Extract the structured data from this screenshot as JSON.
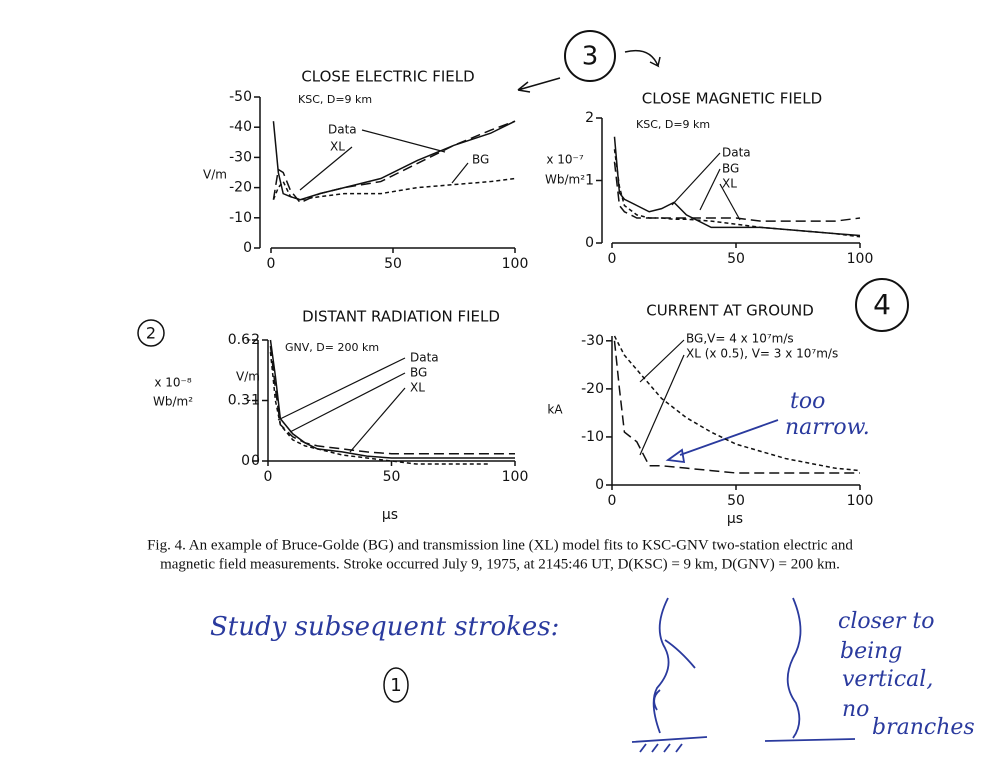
{
  "chart_data": [
    {
      "type": "line",
      "title": "CLOSE ELECTRIC FIELD",
      "subtitle": "KSC, D=9 km",
      "ylabel": [
        "V/m"
      ],
      "x": [
        1,
        3,
        5,
        8,
        12,
        20,
        30,
        45,
        60,
        75,
        90,
        100
      ],
      "xlim": [
        0,
        100
      ],
      "xticks": [
        0,
        50,
        100
      ],
      "ylim": [
        0,
        -50
      ],
      "yticks": [
        0,
        -10,
        -20,
        -30,
        -40,
        -50
      ],
      "series": [
        {
          "name": "Data",
          "color": "#111111",
          "dash": "solid",
          "values": [
            -42,
            -25,
            -18,
            -17,
            -16,
            -18,
            -20,
            -23,
            -29,
            -34,
            -38,
            -42
          ]
        },
        {
          "name": "XL",
          "color": "#111111",
          "dash": "long",
          "values": [
            -16,
            -26,
            -25,
            -19,
            -15,
            -18,
            -20,
            -22,
            -28,
            -34,
            -39,
            -42
          ]
        },
        {
          "name": "BG",
          "color": "#111111",
          "dash": "short",
          "values": [
            -16,
            -20,
            -22,
            -17,
            -16,
            -17,
            -18,
            -18,
            -20,
            -21,
            -22,
            -23
          ]
        }
      ]
    },
    {
      "type": "line",
      "title": "CLOSE MAGNETIC FIELD",
      "subtitle": "KSC, D=9 km",
      "ylabel": [
        "x 10⁻⁷",
        "Wb/m²"
      ],
      "x": [
        1,
        3,
        5,
        10,
        15,
        20,
        25,
        30,
        40,
        50,
        60,
        75,
        90,
        100
      ],
      "xlim": [
        0,
        100
      ],
      "xticks": [
        0,
        50,
        100
      ],
      "ylim": [
        0,
        2
      ],
      "yticks": [
        0,
        1,
        2
      ],
      "series": [
        {
          "name": "Data",
          "color": "#111111",
          "dash": "solid",
          "values": [
            1.7,
            0.8,
            0.7,
            0.6,
            0.5,
            0.55,
            0.65,
            0.45,
            0.25,
            0.25,
            0.25,
            0.2,
            0.15,
            0.12
          ]
        },
        {
          "name": "BG",
          "color": "#111111",
          "dash": "short",
          "values": [
            1.5,
            0.9,
            0.6,
            0.45,
            0.4,
            0.4,
            0.38,
            0.38,
            0.35,
            0.3,
            0.25,
            0.2,
            0.15,
            0.1
          ]
        },
        {
          "name": "XL",
          "color": "#111111",
          "dash": "long",
          "values": [
            1.3,
            0.6,
            0.5,
            0.4,
            0.4,
            0.4,
            0.4,
            0.4,
            0.4,
            0.4,
            0.35,
            0.35,
            0.35,
            0.4
          ]
        }
      ]
    },
    {
      "type": "line",
      "title": "DISTANT RADIATION FIELD",
      "subtitle": "GNV, D= 200 km",
      "ylabel": [
        "x 10⁻⁸",
        "Wb/m²"
      ],
      "y2label": [
        "V/m"
      ],
      "xlabel": "µs",
      "x": [
        1,
        3,
        5,
        10,
        15,
        20,
        30,
        40,
        50,
        60,
        70,
        80,
        90,
        100
      ],
      "xlim": [
        0,
        100
      ],
      "xticks": [
        0,
        50,
        100
      ],
      "ylim": [
        0,
        0.6
      ],
      "yticks": [
        0,
        0.3,
        0.6
      ],
      "y2lim": [
        0,
        -2
      ],
      "y2ticks": [
        0,
        -1,
        -2
      ],
      "series": [
        {
          "name": "Data",
          "color": "#111111",
          "dash": "solid",
          "axis": "y2",
          "values": [
            -2,
            -1.4,
            -0.7,
            -0.45,
            -0.3,
            -0.2,
            -0.15,
            -0.08,
            -0.05,
            -0.05,
            -0.05,
            -0.05,
            -0.05,
            -0.05
          ]
        },
        {
          "name": "BG",
          "color": "#111111",
          "dash": "short",
          "axis": "y2",
          "values": [
            -1.8,
            -1.0,
            -0.6,
            -0.35,
            -0.25,
            -0.2,
            -0.1,
            -0.05,
            0,
            0.05,
            0.05,
            0.05,
            0.05,
            null
          ]
        },
        {
          "name": "XL",
          "color": "#111111",
          "dash": "long",
          "axis": "y2",
          "values": [
            -1.9,
            -1.2,
            -0.6,
            -0.4,
            -0.3,
            -0.25,
            -0.2,
            -0.15,
            -0.12,
            -0.12,
            -0.12,
            -0.12,
            -0.12,
            -0.12
          ]
        }
      ]
    },
    {
      "type": "line",
      "title": "CURRENT AT GROUND",
      "ylabel": [
        "kA"
      ],
      "xlabel": "µs",
      "x": [
        1,
        3,
        5,
        10,
        15,
        20,
        30,
        40,
        50,
        60,
        70,
        80,
        90,
        100
      ],
      "xlim": [
        0,
        100
      ],
      "xticks": [
        0,
        50,
        100
      ],
      "ylim": [
        0,
        -31
      ],
      "yticks": [
        0,
        -10,
        -20,
        -30
      ],
      "series": [
        {
          "name": "BG,V= 4 x 10⁷m/s",
          "color": "#111111",
          "dash": "short",
          "values": [
            -31,
            -29,
            -27,
            -24,
            -21,
            -18,
            -14,
            -11,
            -8.5,
            -7,
            -5.5,
            -4.5,
            -3.5,
            -3
          ]
        },
        {
          "name": "XL (x 0.5), V= 3 x 10⁷m/s",
          "color": "#111111",
          "dash": "long",
          "values": [
            -30,
            -20,
            -11,
            -9,
            -4,
            -4,
            -3.5,
            -3,
            -2.5,
            -2.5,
            -2.5,
            -2.5,
            -2.5,
            -2.5
          ]
        }
      ]
    }
  ],
  "caption": [
    "Fig. 4. An example of Bruce-Golde (BG) and transmission line (XL) model fits to KSC-GNV two-station electric and",
    "magnetic field measurements. Stroke occurred July 9, 1975, at 2145:46 UT, D(KSC) = 9 km, D(GNV) = 200 km."
  ],
  "notes": {
    "n3": "3",
    "n4": "4",
    "n2": "2",
    "n1": "1",
    "narrow": [
      "too",
      "narrow."
    ],
    "study": "Study subsequent strokes:",
    "closer": [
      "closer to",
      "being",
      "vertical,",
      "no",
      "branches"
    ]
  }
}
